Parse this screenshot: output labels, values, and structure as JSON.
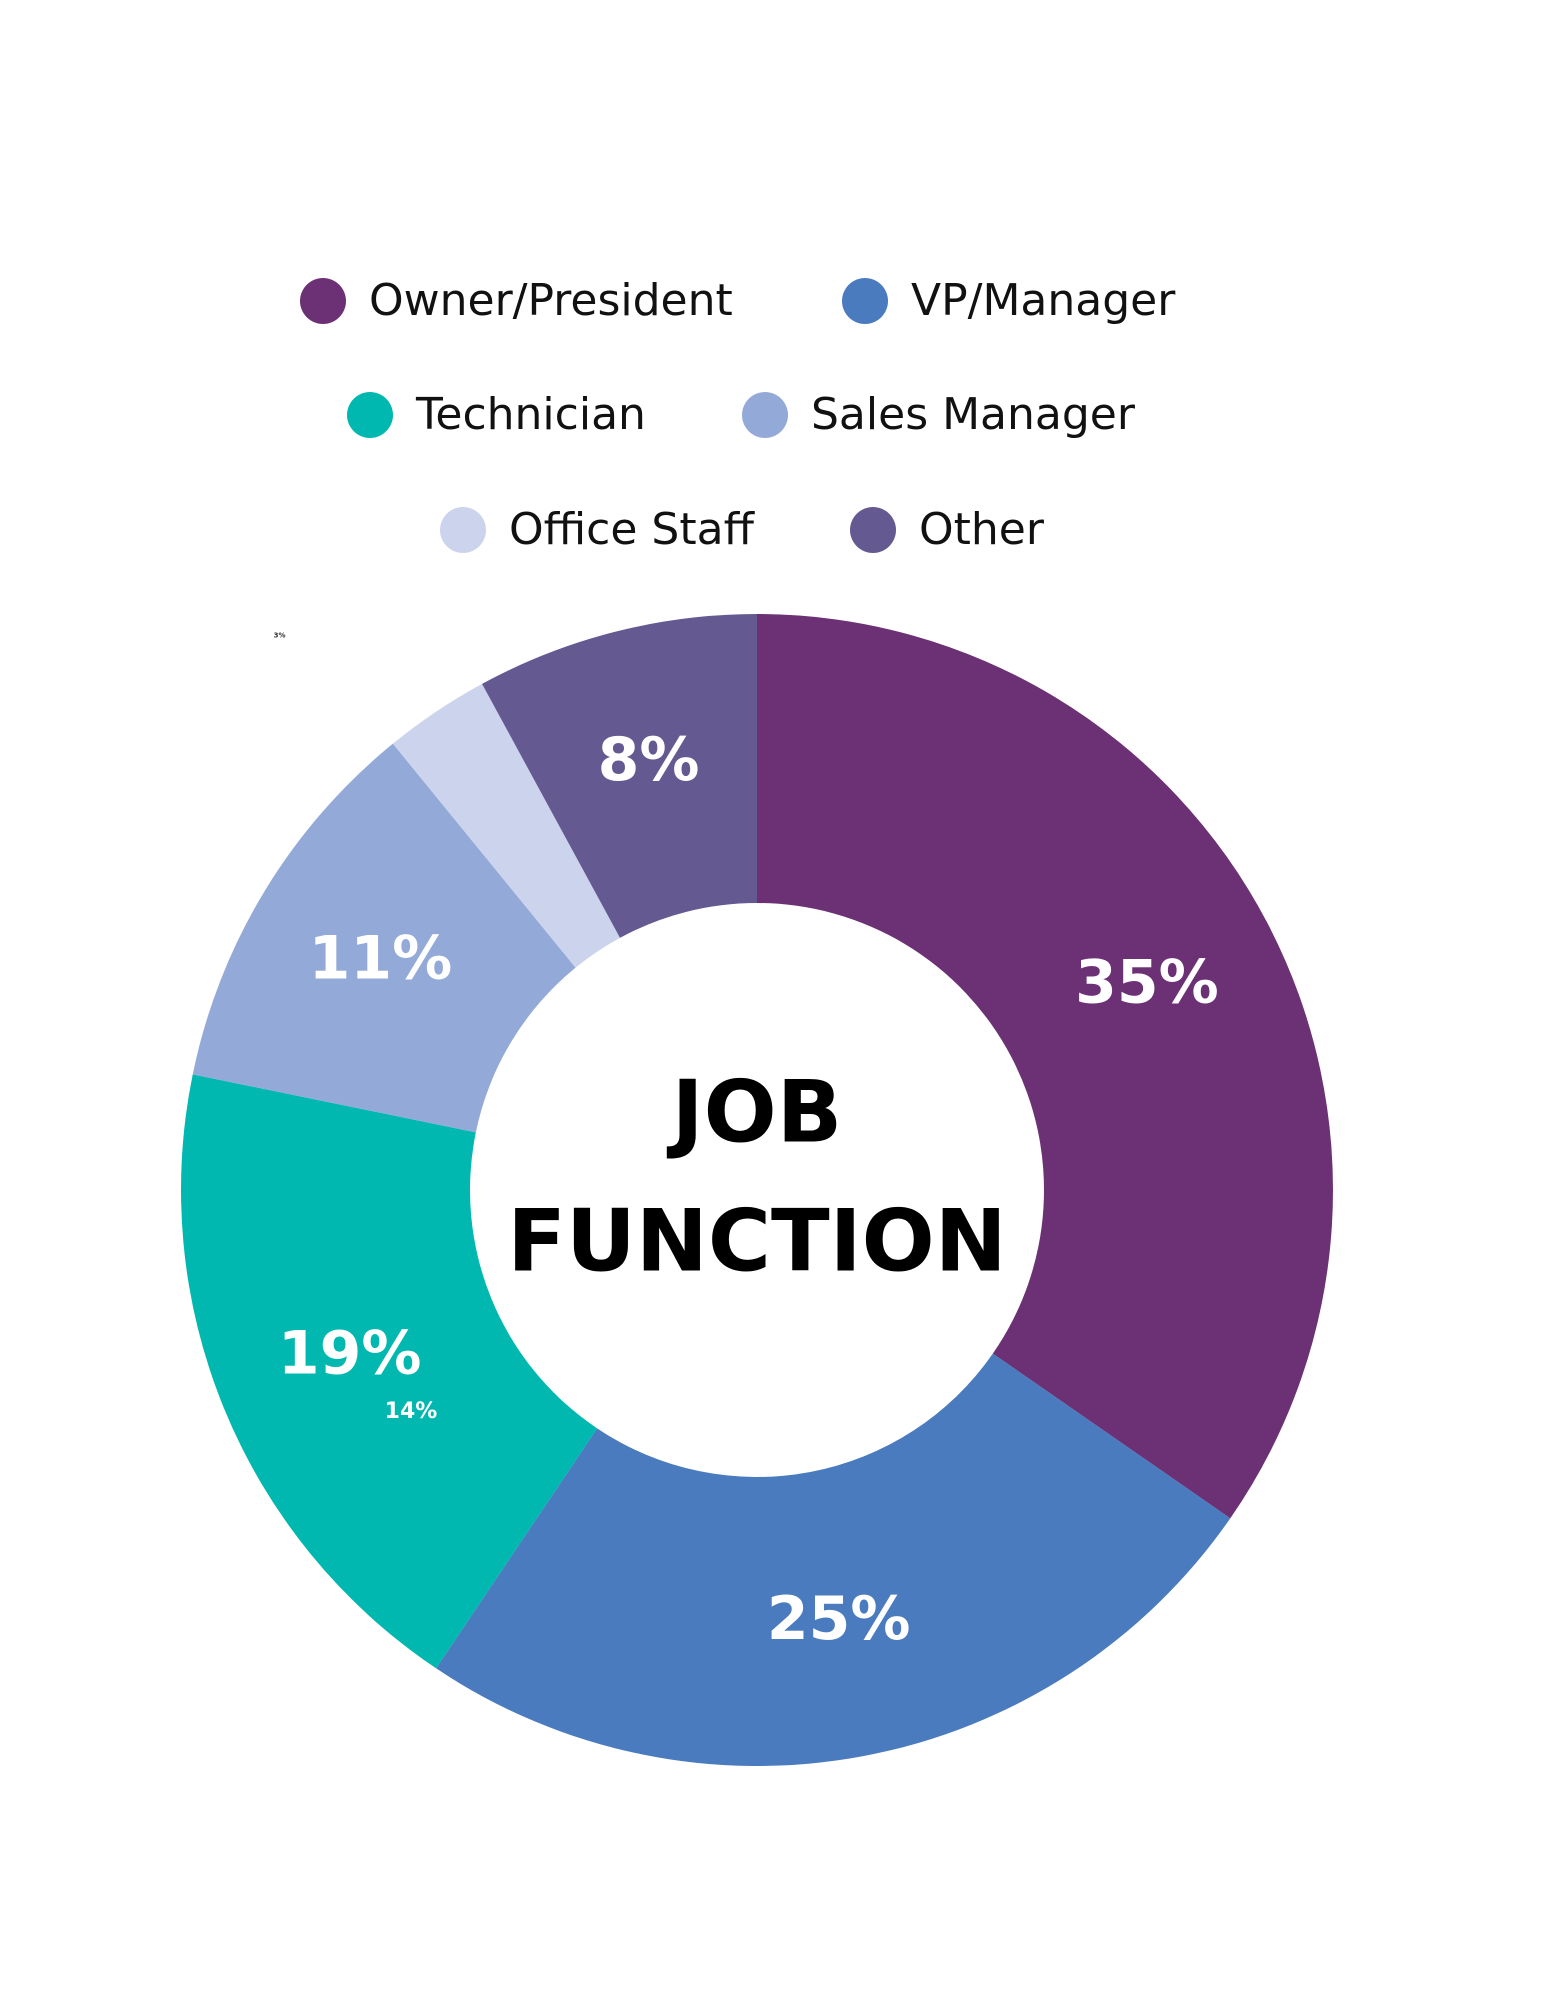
{
  "chart_data": {
    "type": "donut",
    "title": [
      "JOB",
      "FUNCTION"
    ],
    "categories": [
      "Owner/President",
      "VP/Manager",
      "Technician",
      "Sales Manager",
      "Office Staff",
      "Other"
    ],
    "values": [
      35,
      25,
      19,
      11,
      3,
      8
    ],
    "value_labels": [
      "35%",
      "25%",
      "19%",
      "11%",
      "3%",
      "8%"
    ],
    "colors": [
      "#6c3075",
      "#4a7bbe",
      "#00b8b0",
      "#93a9d8",
      "#ccd4ed",
      "#645a91"
    ],
    "annotations": [
      "14%"
    ],
    "legend": "top"
  }
}
